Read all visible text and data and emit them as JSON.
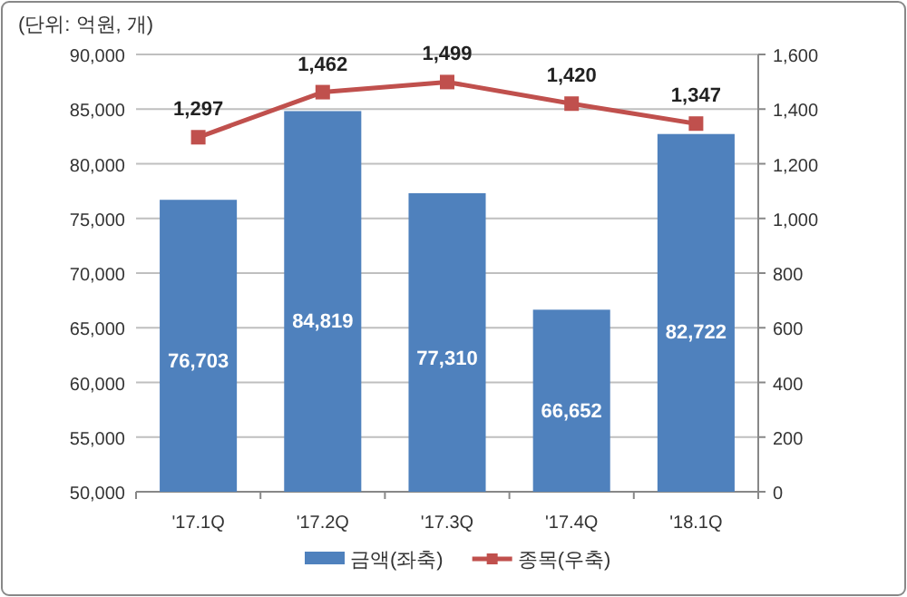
{
  "chart_data": {
    "type": "bar",
    "title": "(단위: 억원, 개)",
    "categories": [
      "'17.1Q",
      "'17.2Q",
      "'17.3Q",
      "'17.4Q",
      "'18.1Q"
    ],
    "series": [
      {
        "name": "금액(좌축)",
        "color": "#4f81bd",
        "values": [
          76703,
          84819,
          77310,
          66652,
          82722
        ],
        "value_labels": [
          "76,703",
          "84,819",
          "77,310",
          "66,652",
          "82,722"
        ]
      },
      {
        "name": "종목(우축)",
        "type": "line",
        "axis": "y2",
        "color": "#c0504d",
        "marker": "square",
        "values": [
          1297,
          1462,
          1499,
          1420,
          1347
        ],
        "value_labels": [
          "1,297",
          "1,462",
          "1,499",
          "1,420",
          "1,347"
        ]
      }
    ],
    "ylim": [
      50000,
      90000
    ],
    "yticks": [
      {
        "value": 50000,
        "label": "50,000"
      },
      {
        "value": 55000,
        "label": "55,000"
      },
      {
        "value": 60000,
        "label": "60,000"
      },
      {
        "value": 65000,
        "label": "65,000"
      },
      {
        "value": 70000,
        "label": "70,000"
      },
      {
        "value": 75000,
        "label": "75,000"
      },
      {
        "value": 80000,
        "label": "80,000"
      },
      {
        "value": 85000,
        "label": "85,000"
      },
      {
        "value": 90000,
        "label": "90,000"
      }
    ],
    "y2lim": [
      0,
      1600
    ],
    "y2ticks": [
      0,
      200,
      400,
      600,
      800,
      {
        "value": 1000,
        "label": "1,000"
      },
      {
        "value": 1200,
        "label": "1,200"
      },
      {
        "value": 1400,
        "label": "1,400"
      },
      {
        "value": 1600,
        "label": "1,600"
      }
    ],
    "grid": "y",
    "legend": "bottom"
  }
}
